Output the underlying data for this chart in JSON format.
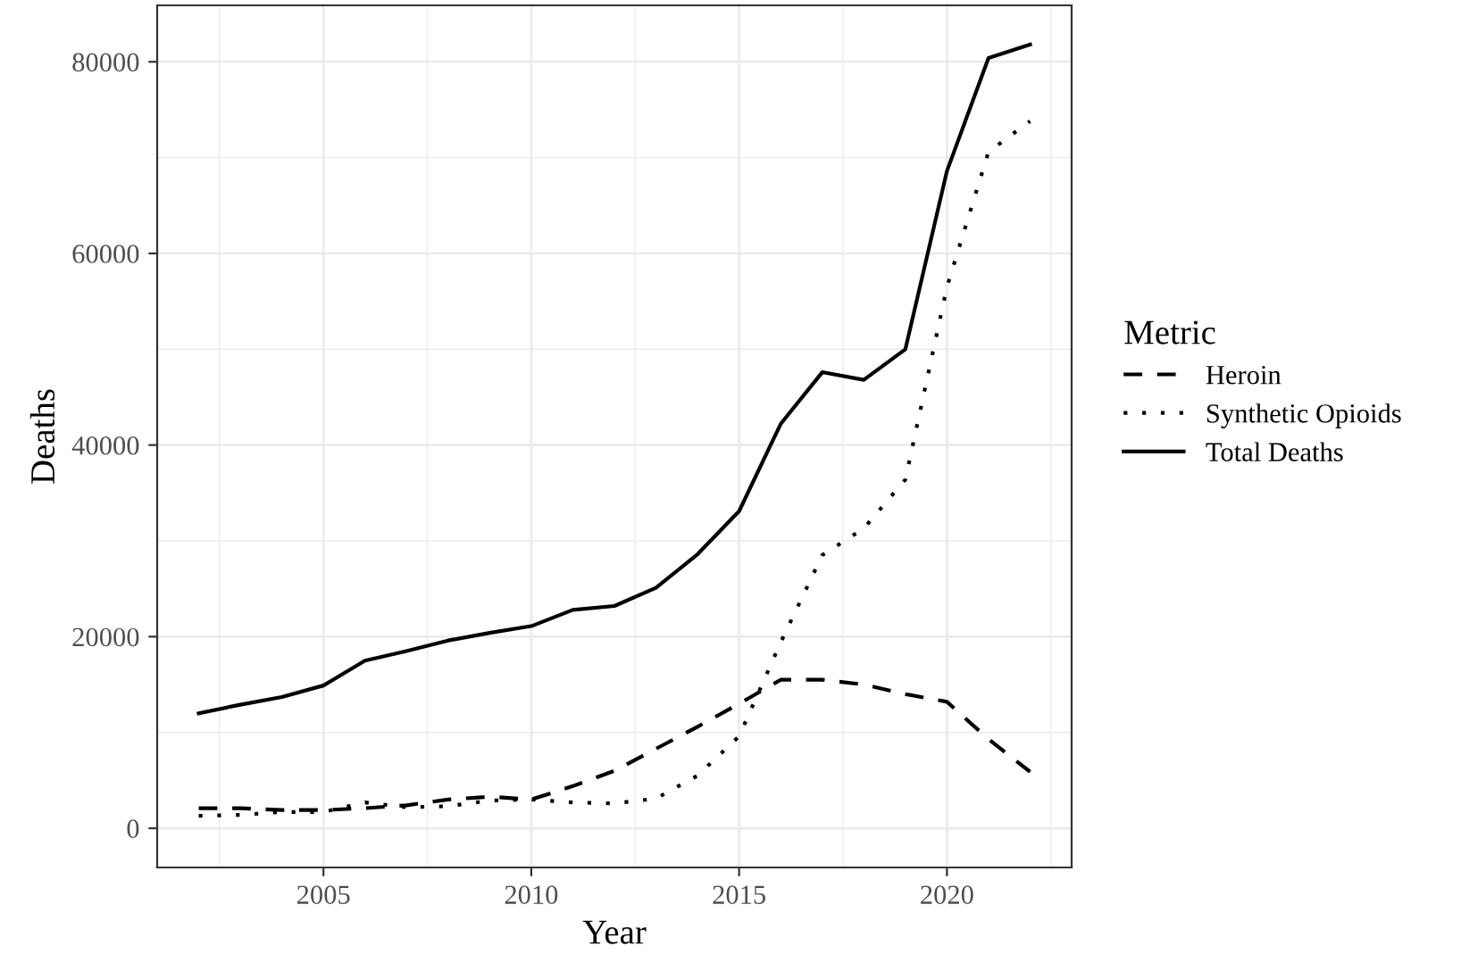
{
  "chart_data": {
    "type": "line",
    "xlabel": "Year",
    "ylabel": "Deaths",
    "legend_title": "Metric",
    "legend": "right",
    "grid": true,
    "x": [
      2002,
      2003,
      2004,
      2005,
      2006,
      2007,
      2008,
      2009,
      2010,
      2011,
      2012,
      2013,
      2014,
      2015,
      2016,
      2017,
      2018,
      2019,
      2020,
      2021,
      2022
    ],
    "series": [
      {
        "name": "Heroin",
        "color": "#000000",
        "line_style": "dashed",
        "values": [
          2100,
          2100,
          1900,
          1900,
          2100,
          2400,
          3000,
          3300,
          3000,
          4400,
          6000,
          8300,
          10600,
          13000,
          15500,
          15500,
          15000,
          14000,
          13200,
          9300,
          5900
        ]
      },
      {
        "name": "Synthetic Opioids",
        "color": "#000000",
        "line_style": "dotted",
        "values": [
          1300,
          1400,
          1700,
          1700,
          2700,
          2200,
          2300,
          2900,
          3000,
          2700,
          2600,
          3100,
          5500,
          9600,
          19400,
          28500,
          31300,
          36400,
          56500,
          70600,
          73800
        ]
      },
      {
        "name": "Total Deaths",
        "color": "#000000",
        "line_style": "solid",
        "values": [
          12000,
          12900,
          13700,
          14900,
          17500,
          18500,
          19600,
          20400,
          21100,
          22800,
          23200,
          25100,
          28600,
          33100,
          42200,
          47600,
          46800,
          50000,
          68600,
          80400,
          81800
        ]
      }
    ],
    "xlim": [
      2001,
      2023
    ],
    "xticks": [
      2005,
      2010,
      2015,
      2020
    ],
    "ylim": [
      -4090,
      85890
    ],
    "yticks": [
      0,
      20000,
      40000,
      60000,
      80000
    ]
  }
}
